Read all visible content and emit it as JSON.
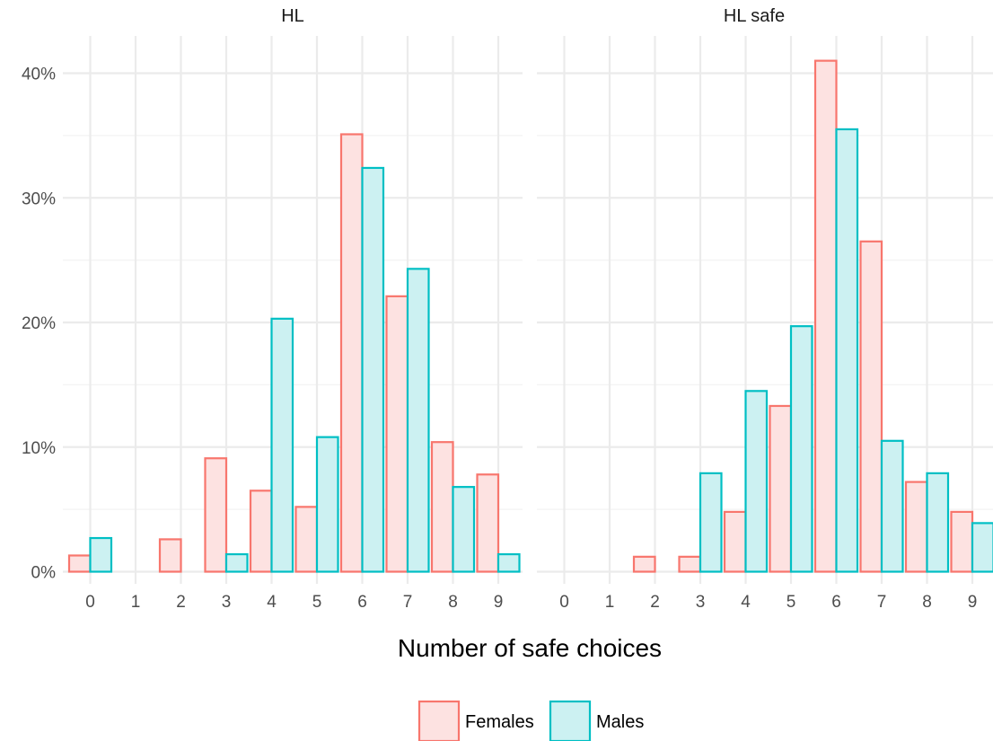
{
  "chart_data": {
    "type": "bar",
    "xlabel": "Number of safe choices",
    "ylabel": "",
    "ylim": [
      0,
      42
    ],
    "y_ticks": [
      0,
      10,
      20,
      30,
      40
    ],
    "y_tick_labels": [
      "0%",
      "10%",
      "20%",
      "30%",
      "40%"
    ],
    "categories": [
      "0",
      "1",
      "2",
      "3",
      "4",
      "5",
      "6",
      "7",
      "8",
      "9"
    ],
    "grid": true,
    "legend_position": "bottom",
    "legend": [
      "Females",
      "Males"
    ],
    "colors": {
      "Females": {
        "stroke": "#f8766d",
        "fill": "#fde2e1"
      },
      "Males": {
        "stroke": "#00bfc4",
        "fill": "#ccf1f2"
      }
    },
    "panels": [
      {
        "title": "HL",
        "series": [
          {
            "name": "Females",
            "values": [
              1.3,
              0,
              2.6,
              9.1,
              6.5,
              5.2,
              35.1,
              22.1,
              10.4,
              7.8
            ]
          },
          {
            "name": "Males",
            "values": [
              2.7,
              0,
              0,
              1.4,
              20.3,
              10.8,
              32.4,
              24.3,
              6.8,
              1.4
            ]
          }
        ]
      },
      {
        "title": "HL safe",
        "series": [
          {
            "name": "Females",
            "values": [
              0,
              0,
              1.2,
              1.2,
              4.8,
              13.3,
              41.0,
              26.5,
              7.2,
              4.8
            ]
          },
          {
            "name": "Males",
            "values": [
              0,
              0,
              0,
              7.9,
              14.5,
              19.7,
              35.5,
              10.5,
              7.9,
              3.9
            ]
          }
        ]
      }
    ]
  }
}
